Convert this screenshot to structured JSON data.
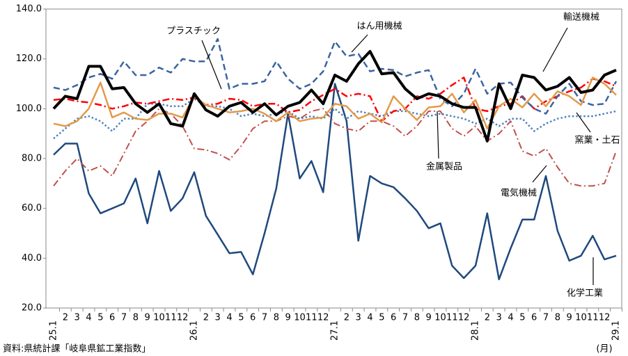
{
  "chart_data": {
    "type": "line",
    "categories": [
      "25.1",
      "2",
      "3",
      "4",
      "5",
      "6",
      "7",
      "8",
      "9",
      "10",
      "11",
      "12",
      "26.1",
      "2",
      "3",
      "4",
      "5",
      "6",
      "7",
      "8",
      "9",
      "10",
      "11",
      "12",
      "27.1",
      "2",
      "3",
      "4",
      "5",
      "6",
      "7",
      "8",
      "9",
      "10",
      "11",
      "12",
      "28.1",
      "2",
      "3",
      "4",
      "5",
      "6",
      "7",
      "8",
      "9",
      "10",
      "11",
      "12",
      "29.1"
    ],
    "ylim": [
      20,
      140
    ],
    "yticks": [
      {
        "value": 20,
        "label": "20.0"
      },
      {
        "value": 40,
        "label": "40.0"
      },
      {
        "value": 60,
        "label": "60.0"
      },
      {
        "value": 80,
        "label": "80.0"
      },
      {
        "value": 100,
        "label": "100.0"
      },
      {
        "value": 120,
        "label": "120.0"
      },
      {
        "value": 140,
        "label": "140.0"
      }
    ],
    "x_unit": "(月)",
    "source": "資料:県統計課「岐阜県鉱工業指数」",
    "series": [
      {
        "name": "化学工業",
        "color": "#1f497d",
        "dash": "solid",
        "width": 2.5,
        "values": [
          81.5,
          86,
          86,
          66,
          58,
          60,
          62,
          72,
          54,
          75,
          59,
          64,
          74.5,
          57,
          49.5,
          42,
          42.5,
          33.5,
          50,
          68,
          98,
          72,
          79,
          66.5,
          110,
          95,
          47,
          73,
          70,
          68.5,
          64,
          59,
          52,
          54,
          37,
          32,
          37,
          58,
          31.5,
          44,
          55.5,
          55.5,
          73,
          51,
          39,
          41,
          49,
          39.5,
          41
        ]
      },
      {
        "name": "電気機械",
        "color": "#c0504d",
        "dash": "dashdot",
        "width": 2,
        "values": [
          69,
          75,
          80,
          75,
          77,
          73,
          82,
          91,
          95,
          100,
          98,
          93,
          84,
          83.5,
          82,
          79.5,
          85,
          92,
          95,
          95,
          97,
          96,
          99,
          100,
          94,
          92,
          91,
          95,
          95,
          93,
          89,
          93,
          99,
          99,
          92,
          89,
          93,
          87,
          90,
          95,
          83,
          81,
          84,
          76.5,
          70,
          69,
          69,
          70,
          83
        ]
      },
      {
        "name": "窯業・土石",
        "color": "#4f81bd",
        "dash": "dotted",
        "width": 2.5,
        "values": [
          88,
          92,
          96,
          97,
          95,
          91,
          96,
          96,
          102,
          102,
          101,
          101,
          104,
          101,
          101,
          100,
          97,
          98,
          97,
          98,
          99,
          96,
          97,
          96,
          100,
          96,
          99,
          98,
          97,
          99,
          99,
          98,
          97,
          98,
          97,
          96,
          94,
          96,
          93,
          96,
          96,
          91,
          94,
          96,
          97,
          97,
          97,
          98,
          99
        ]
      },
      {
        "name": "プラスチック",
        "color": "#ff0000",
        "dash": "dashdot",
        "width": 2.5,
        "values": [
          103.5,
          104,
          103,
          102.5,
          101.5,
          100,
          101,
          102.5,
          102,
          103,
          104,
          103.5,
          104.5,
          101.5,
          102,
          104,
          103.5,
          101,
          102,
          102,
          98.5,
          99.5,
          103,
          105.5,
          108,
          105,
          106,
          105,
          95,
          99,
          100,
          105,
          104,
          106,
          109.5,
          112.5,
          100,
          99,
          101,
          102,
          105,
          100,
          103,
          105,
          107,
          108.5,
          112,
          111,
          109
        ]
      },
      {
        "name": "はん用機械",
        "color": "#3b64a0",
        "dash": "dashed",
        "width": 2.5,
        "values": [
          108.5,
          107.5,
          109.5,
          112.5,
          114,
          112,
          119,
          113.5,
          113.5,
          116.5,
          114.5,
          120,
          119,
          119,
          128,
          108,
          110,
          110,
          111,
          119,
          112,
          108,
          110,
          115,
          127,
          121,
          122,
          115,
          116,
          115.5,
          113,
          114.5,
          115.5,
          104,
          101,
          106,
          116,
          106,
          110,
          110.5,
          104.5,
          100,
          98,
          105,
          110,
          103,
          101.5,
          102,
          111
        ]
      },
      {
        "name": "金属製品",
        "color": "#e29a4a",
        "dash": "solid",
        "width": 2.5,
        "values": [
          94,
          93,
          95,
          100,
          110.5,
          96.5,
          98.5,
          96,
          95.5,
          98,
          98,
          96.5,
          105,
          101.5,
          100,
          98.5,
          99,
          100,
          98,
          95,
          98.5,
          95,
          96,
          96.5,
          102,
          101,
          96,
          98,
          94.5,
          105,
          100,
          95.5,
          100.5,
          101,
          106,
          98.5,
          103.5,
          92,
          101,
          104,
          100.5,
          106,
          101,
          107,
          105,
          101.5,
          112.5,
          110,
          105.5
        ]
      },
      {
        "name": "輸送機械",
        "color": "#000000",
        "dash": "solid",
        "width": 4,
        "values": [
          100,
          105,
          104,
          117,
          117,
          108,
          108.5,
          102,
          98.5,
          102,
          94,
          93,
          106,
          99.5,
          97,
          101,
          102.5,
          98.5,
          102,
          97.5,
          101,
          102.5,
          107.5,
          102,
          113.5,
          111,
          118,
          123,
          114,
          114.5,
          108,
          104,
          106,
          105,
          102,
          100.5,
          100.5,
          87,
          110,
          100,
          113.5,
          112.5,
          107.5,
          109,
          112.5,
          106.5,
          107.5,
          113.5,
          115.5
        ]
      }
    ]
  }
}
